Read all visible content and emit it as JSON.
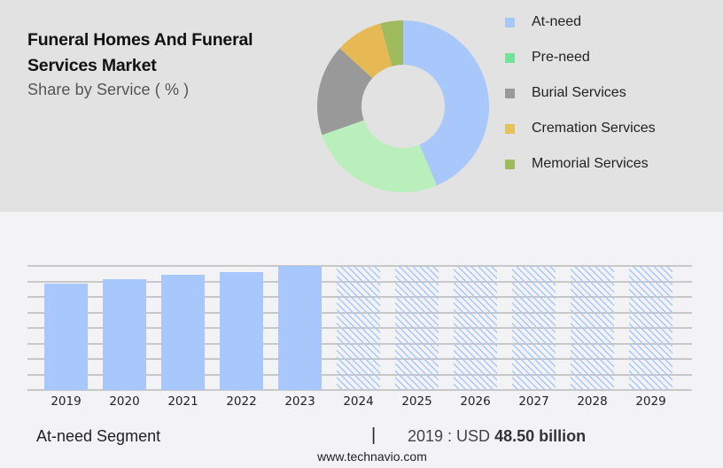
{
  "header": {
    "title_line1": "Funeral Homes And Funeral",
    "title_line2": "Services Market",
    "subtitle": "Share by Service ( % )"
  },
  "legend": [
    {
      "label": "At-need",
      "color": "#a8c8fc"
    },
    {
      "label": "Pre-need",
      "color": "#74e39a"
    },
    {
      "label": "Burial Services",
      "color": "#999999"
    },
    {
      "label": "Cremation Services",
      "color": "#e3c35a"
    },
    {
      "label": "Memorial Services",
      "color": "#a0bb5e"
    }
  ],
  "footer": {
    "segment_label": "At-need Segment",
    "separator": "|",
    "value_prefix": "2019 : USD ",
    "value_bold": "48.50 billion",
    "url": "www.technavio.com"
  },
  "chart_data": [
    {
      "type": "pie",
      "title": "Funeral Homes And Funeral Services Market",
      "subtitle": "Share by Service ( % )",
      "donut": true,
      "categories": [
        "At-need",
        "Pre-need",
        "Burial Services",
        "Cremation Services",
        "Memorial Services"
      ],
      "values": [
        43.6,
        26.0,
        17.2,
        8.9,
        4.3
      ],
      "colors": [
        "#a8c8fc",
        "#b8efbb",
        "#999999",
        "#e6b955",
        "#a0bb5e"
      ],
      "legend_position": "right"
    },
    {
      "type": "bar",
      "title": "At-need Segment",
      "categories": [
        "2019",
        "2020",
        "2021",
        "2022",
        "2023",
        "2024",
        "2025",
        "2026",
        "2027",
        "2028",
        "2029"
      ],
      "values": [
        48.5,
        50.4,
        52.6,
        53.7,
        56.6,
        null,
        null,
        null,
        null,
        null,
        null
      ],
      "forecast": [
        false,
        false,
        false,
        false,
        false,
        true,
        true,
        true,
        true,
        true,
        true
      ],
      "annotation": "2019 : USD 48.50 billion",
      "xlabel": "",
      "ylabel": "",
      "grid": true,
      "y_axis_labels_shown": false,
      "gridline_count": 9
    }
  ]
}
